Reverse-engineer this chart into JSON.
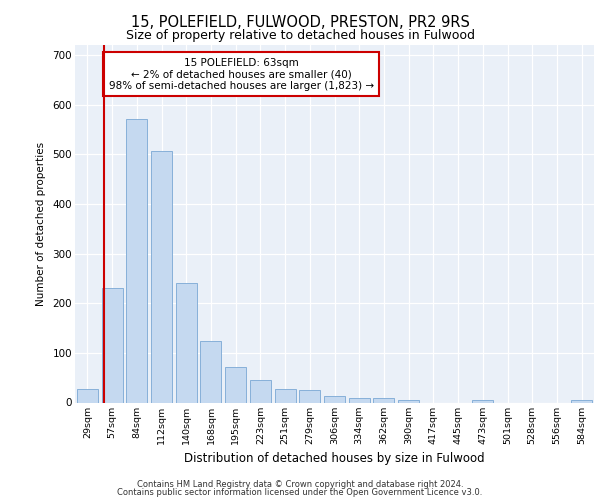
{
  "title1": "15, POLEFIELD, FULWOOD, PRESTON, PR2 9RS",
  "title2": "Size of property relative to detached houses in Fulwood",
  "xlabel": "Distribution of detached houses by size in Fulwood",
  "ylabel": "Number of detached properties",
  "categories": [
    "29sqm",
    "57sqm",
    "84sqm",
    "112sqm",
    "140sqm",
    "168sqm",
    "195sqm",
    "223sqm",
    "251sqm",
    "279sqm",
    "306sqm",
    "334sqm",
    "362sqm",
    "390sqm",
    "417sqm",
    "445sqm",
    "473sqm",
    "501sqm",
    "528sqm",
    "556sqm",
    "584sqm"
  ],
  "values": [
    28,
    230,
    570,
    507,
    240,
    123,
    71,
    45,
    28,
    25,
    13,
    10,
    10,
    5,
    0,
    0,
    5,
    0,
    0,
    0,
    5
  ],
  "bar_color": "#c5d9f0",
  "bar_edge_color": "#7aa8d4",
  "highlight_color": "#cc0000",
  "annotation_text": "15 POLEFIELD: 63sqm\n← 2% of detached houses are smaller (40)\n98% of semi-detached houses are larger (1,823) →",
  "annotation_box_color": "#ffffff",
  "annotation_box_edge": "#cc0000",
  "ylim": [
    0,
    720
  ],
  "yticks": [
    0,
    100,
    200,
    300,
    400,
    500,
    600,
    700
  ],
  "footer1": "Contains HM Land Registry data © Crown copyright and database right 2024.",
  "footer2": "Contains public sector information licensed under the Open Government Licence v3.0.",
  "plot_bg": "#eaf0f8"
}
